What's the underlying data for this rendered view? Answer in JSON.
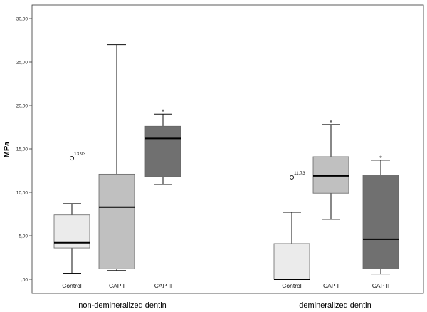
{
  "chart_data": {
    "type": "box",
    "ylabel": "MPa",
    "ylim": [
      0,
      30
    ],
    "yticks": [
      {
        "value": 0,
        "label": ",00"
      },
      {
        "value": 5,
        "label": "5,00"
      },
      {
        "value": 10,
        "label": "10,00"
      },
      {
        "value": 15,
        "label": "15,00"
      },
      {
        "value": 20,
        "label": "20,00"
      },
      {
        "value": 25,
        "label": "25,00"
      },
      {
        "value": 30,
        "label": "30,00"
      }
    ],
    "groups": [
      {
        "label": "non-demineralized dentin",
        "boxes": [
          {
            "category": "Control",
            "min": 0.7,
            "q1": 3.6,
            "median": 4.2,
            "q3": 7.4,
            "max": 8.7,
            "color": "#ebebeb",
            "outlier": {
              "value": 13.93,
              "label": "13,93"
            }
          },
          {
            "category": "CAP I",
            "min": 1.0,
            "q1": 1.2,
            "median": 8.3,
            "q3": 12.1,
            "max": 27.0,
            "color": "#c0c0c0"
          },
          {
            "category": "CAP II",
            "min": 10.9,
            "q1": 11.8,
            "median": 16.2,
            "q3": 17.6,
            "max": 19.0,
            "color": "#707070",
            "star": "*"
          }
        ]
      },
      {
        "label": "demineralized dentin",
        "boxes": [
          {
            "category": "Control",
            "min": 0.0,
            "q1": 0.0,
            "median": 0.0,
            "q3": 4.1,
            "max": 7.7,
            "color": "#ebebeb",
            "outlier": {
              "value": 11.73,
              "label": "11,73"
            }
          },
          {
            "category": "CAP I",
            "min": 6.9,
            "q1": 9.9,
            "median": 11.9,
            "q3": 14.1,
            "max": 17.8,
            "color": "#c0c0c0",
            "star": "*"
          },
          {
            "category": "CAP II",
            "min": 0.6,
            "q1": 1.2,
            "median": 4.6,
            "q3": 12.0,
            "max": 13.7,
            "color": "#707070",
            "star": "*"
          }
        ]
      }
    ]
  }
}
